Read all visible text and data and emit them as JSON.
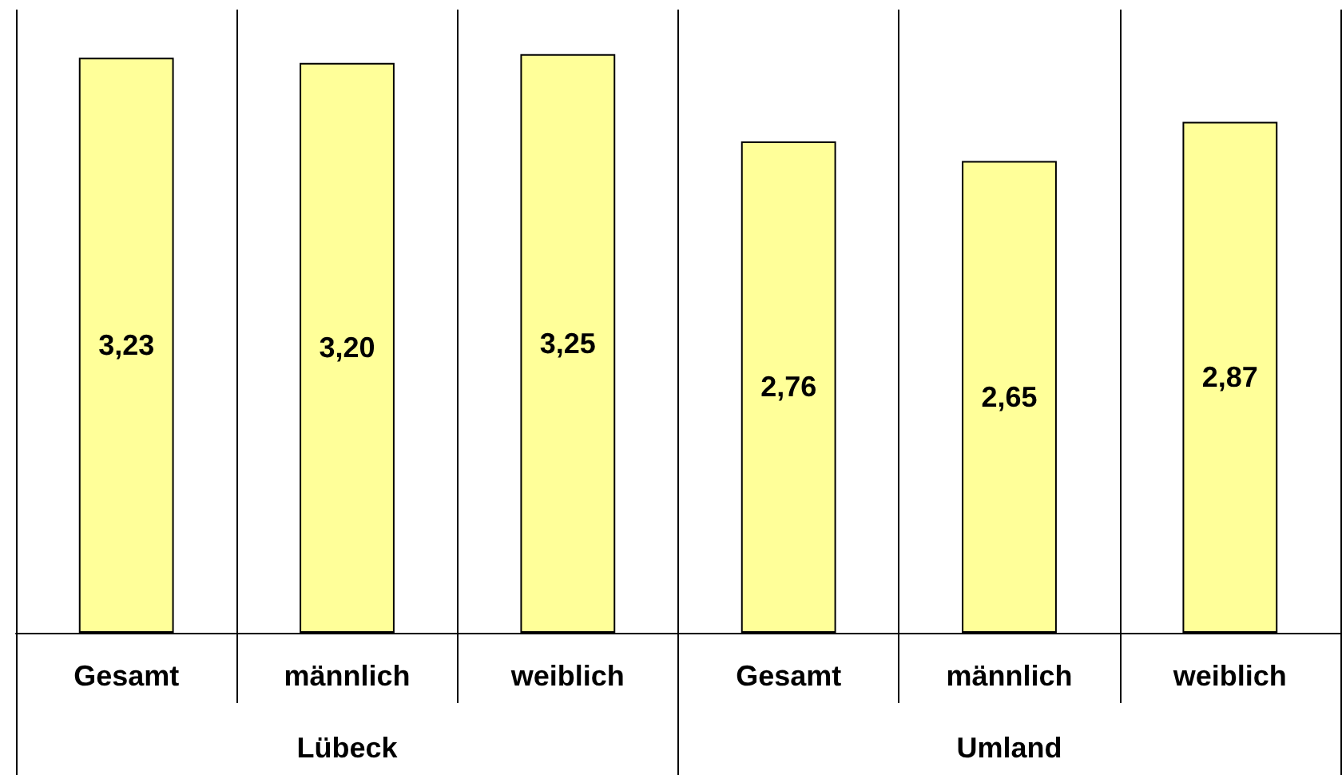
{
  "chart_data": {
    "type": "bar",
    "categories": [
      "Gesamt",
      "männlich",
      "weiblich",
      "Gesamt",
      "männlich",
      "weiblich"
    ],
    "values": [
      3.23,
      3.2,
      3.25,
      2.76,
      2.65,
      2.87
    ],
    "color": "#ffff99",
    "value_labels": [
      "3,23",
      "3,20",
      "3,25",
      "2,76",
      "2,65",
      "2,87"
    ],
    "grid": "x",
    "annotations": [
      "Lübeck",
      "Umland"
    ]
  }
}
